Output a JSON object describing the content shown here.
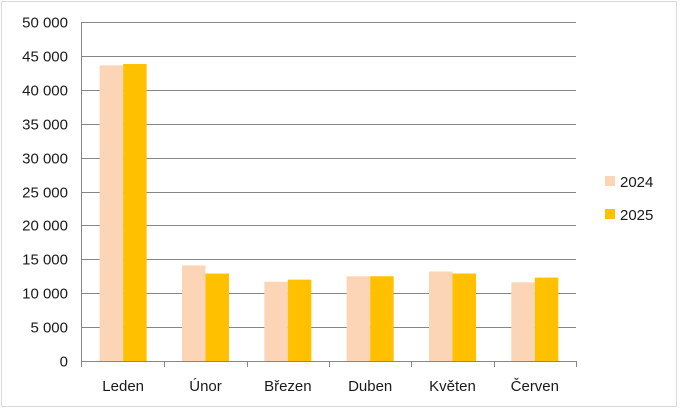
{
  "chart_data": {
    "type": "bar",
    "title": "",
    "xlabel": "",
    "ylabel": "",
    "categories": [
      "Leden",
      "Únor",
      "Březen",
      "Duben",
      "Květen",
      "Červen"
    ],
    "series": [
      {
        "name": "2024",
        "color": "#FBD5B5",
        "values": [
          43600,
          14100,
          11700,
          12500,
          13200,
          11600
        ]
      },
      {
        "name": "2025",
        "color": "#FFC000",
        "values": [
          43800,
          12900,
          12000,
          12500,
          12900,
          12300
        ]
      }
    ],
    "ylim": [
      0,
      50000
    ],
    "yticks": [
      0,
      5000,
      10000,
      15000,
      20000,
      25000,
      30000,
      35000,
      40000,
      45000,
      50000
    ],
    "ytick_labels": [
      "0",
      "5 000",
      "10 000",
      "15 000",
      "20 000",
      "25 000",
      "30 000",
      "35 000",
      "40 000",
      "45 000",
      "50 000"
    ],
    "grid": true,
    "legend_position": "right"
  }
}
